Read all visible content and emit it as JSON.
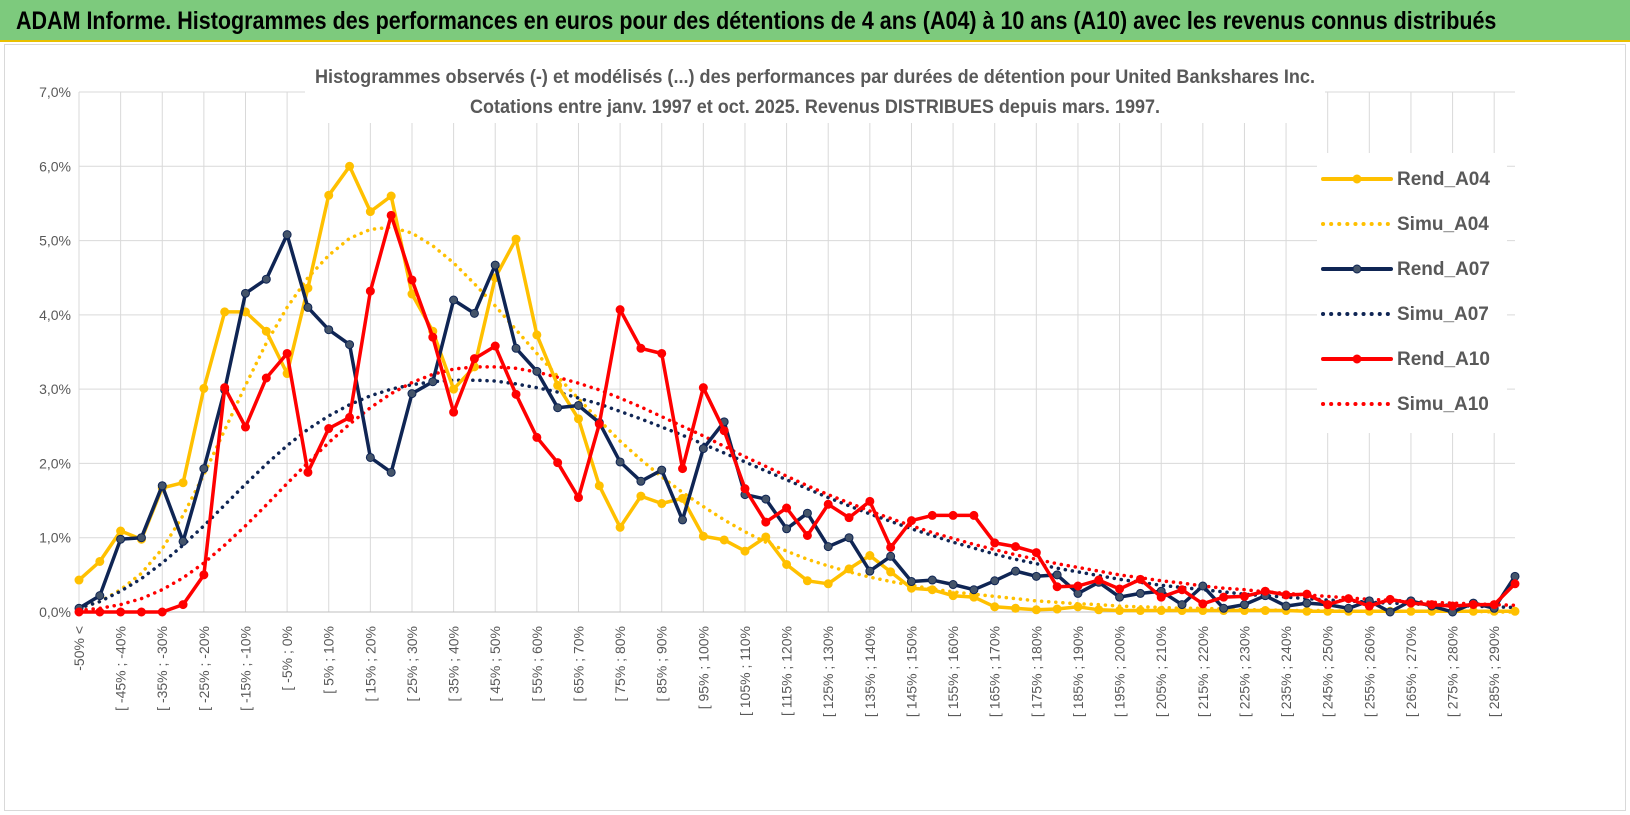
{
  "banner": {
    "title": "ADAM Informe. Histogrammes des performances en euros pour des détentions de 4 ans (A04) à 10 ans (A10) avec les revenus connus distribués"
  },
  "chart_data": {
    "type": "line",
    "title": "Histogrammes observés (-) et modélisés (...) des performances par durées de détention pour United Bankshares Inc.",
    "subtitle": "Cotations entre janv. 1997 et oct. 2025.  Revenus DISTRIBUES depuis mars. 1997.",
    "xlabel": "",
    "ylabel": "",
    "ylim": [
      0,
      7
    ],
    "yticks": [
      "0,0%",
      "1,0%",
      "2,0%",
      "3,0%",
      "4,0%",
      "5,0%",
      "6,0%",
      "7,0%"
    ],
    "grid": true,
    "legend_position": "right",
    "category_labels": [
      "-50% <",
      "[ -45% ; -40%",
      "[ -35% ; -30%",
      "[ -25% ; -20%",
      "[ -15% ; -10%",
      "[ -5% ; 0%",
      "[ 5% ; 10%",
      "[ 15% ; 20%",
      "[ 25% ; 30%",
      "[ 35% ; 40%",
      "[ 45% ; 50%",
      "[ 55% ; 60%",
      "[ 65% ; 70%",
      "[ 75% ; 80%",
      "[ 85% ; 90%",
      "[ 95% ; 100%",
      "[ 105% ; 110%",
      "[ 115% ; 120%",
      "[ 125% ; 130%",
      "[ 135% ; 140%",
      "[ 145% ; 150%",
      "[ 155% ; 160%",
      "[ 165% ; 170%",
      "[ 175% ; 180%",
      "[ 185% ; 190%",
      "[ 195% ; 200%",
      "[ 205% ; 210%",
      "[ 215% ; 220%",
      "[ 225% ; 230%",
      "[ 235% ; 240%",
      "[ 245% ; 250%",
      "[ 255% ; 260%",
      "[ 265% ; 270%",
      "[ 275% ; 280%",
      "[ 285% ; 290%"
    ],
    "series": [
      {
        "name": "Rend_A04",
        "color": "#ffc000",
        "style": "solid",
        "markers": true,
        "values": [
          0.43,
          0.68,
          1.09,
          0.98,
          1.67,
          1.74,
          3.01,
          4.04,
          4.04,
          3.78,
          3.21,
          4.36,
          5.61,
          6.0,
          5.39,
          5.6,
          4.28,
          3.78,
          3.0,
          3.3,
          4.5,
          5.02,
          3.73,
          3.05,
          2.6,
          1.7,
          1.14,
          1.56,
          1.46,
          1.53,
          1.02,
          0.97,
          0.82,
          1.01,
          0.64,
          0.42,
          0.38,
          0.58,
          0.76,
          0.54,
          0.32,
          0.3,
          0.22,
          0.2,
          0.07,
          0.05,
          0.03,
          0.04,
          0.07,
          0.03,
          0.02,
          0.02,
          0.02,
          0.02,
          0.02,
          0.02,
          0.02,
          0.02,
          0.02,
          0.01,
          0.01,
          0.01,
          0.01,
          0.01,
          0.01,
          0.01,
          0.01,
          0.01,
          0.01,
          0.01
        ]
      },
      {
        "name": "Simu_A04",
        "color": "#ffc000",
        "style": "dotted",
        "markers": false,
        "values": [
          0.05,
          0.14,
          0.3,
          0.52,
          0.85,
          1.3,
          1.85,
          2.45,
          3.05,
          3.62,
          4.1,
          4.5,
          4.8,
          5.03,
          5.15,
          5.18,
          5.1,
          4.93,
          4.7,
          4.42,
          4.12,
          3.8,
          3.48,
          3.17,
          2.87,
          2.58,
          2.3,
          2.05,
          1.82,
          1.61,
          1.42,
          1.24,
          1.08,
          0.94,
          0.82,
          0.71,
          0.62,
          0.54,
          0.47,
          0.41,
          0.36,
          0.31,
          0.27,
          0.24,
          0.21,
          0.18,
          0.15,
          0.13,
          0.11,
          0.1,
          0.08,
          0.07,
          0.06,
          0.05,
          0.05,
          0.04,
          0.03,
          0.03,
          0.02,
          0.02,
          0.02,
          0.01,
          0.01,
          0.01,
          0.01,
          0.01,
          0.01,
          0.01,
          0.0,
          0.0
        ]
      },
      {
        "name": "Rend_A07",
        "color": "#0f2554",
        "style": "solid",
        "markers": true,
        "values": [
          0.05,
          0.22,
          0.98,
          1.0,
          1.7,
          0.95,
          1.93,
          2.99,
          4.29,
          4.48,
          5.08,
          4.1,
          3.8,
          3.6,
          2.08,
          1.88,
          2.94,
          3.1,
          4.2,
          4.02,
          4.67,
          3.55,
          3.24,
          2.75,
          2.78,
          2.55,
          2.02,
          1.76,
          1.91,
          1.24,
          2.2,
          2.56,
          1.58,
          1.52,
          1.12,
          1.33,
          0.88,
          1.0,
          0.55,
          0.75,
          0.41,
          0.43,
          0.37,
          0.3,
          0.42,
          0.55,
          0.48,
          0.5,
          0.25,
          0.4,
          0.2,
          0.25,
          0.28,
          0.1,
          0.35,
          0.05,
          0.1,
          0.22,
          0.08,
          0.12,
          0.1,
          0.05,
          0.15,
          0.0,
          0.15,
          0.08,
          0.0,
          0.12,
          0.05,
          0.48
        ]
      },
      {
        "name": "Simu_A07",
        "color": "#0f2554",
        "style": "dotted",
        "markers": false,
        "values": [
          0.05,
          0.14,
          0.28,
          0.45,
          0.66,
          0.9,
          1.16,
          1.44,
          1.72,
          1.99,
          2.24,
          2.46,
          2.64,
          2.79,
          2.91,
          3.0,
          3.06,
          3.1,
          3.12,
          3.12,
          3.11,
          3.07,
          3.02,
          2.96,
          2.88,
          2.8,
          2.7,
          2.6,
          2.49,
          2.38,
          2.26,
          2.14,
          2.02,
          1.9,
          1.78,
          1.66,
          1.54,
          1.43,
          1.32,
          1.22,
          1.12,
          1.03,
          0.94,
          0.86,
          0.78,
          0.71,
          0.65,
          0.59,
          0.54,
          0.49,
          0.44,
          0.4,
          0.36,
          0.33,
          0.3,
          0.27,
          0.24,
          0.22,
          0.2,
          0.18,
          0.16,
          0.15,
          0.13,
          0.12,
          0.11,
          0.1,
          0.09,
          0.08,
          0.07,
          0.06
        ]
      },
      {
        "name": "Rend_A10",
        "color": "#ff0000",
        "style": "solid",
        "markers": true,
        "values": [
          0.0,
          0.0,
          0.0,
          0.0,
          0.0,
          0.1,
          0.5,
          3.02,
          2.49,
          3.15,
          3.48,
          1.88,
          2.47,
          2.62,
          4.32,
          5.34,
          4.47,
          3.7,
          2.69,
          3.41,
          3.58,
          2.93,
          2.35,
          2.01,
          1.54,
          2.53,
          4.07,
          3.55,
          3.48,
          1.93,
          3.02,
          2.44,
          1.66,
          1.21,
          1.4,
          1.03,
          1.45,
          1.27,
          1.49,
          0.87,
          1.23,
          1.3,
          1.3,
          1.3,
          0.93,
          0.88,
          0.8,
          0.34,
          0.35,
          0.43,
          0.31,
          0.44,
          0.2,
          0.3,
          0.11,
          0.2,
          0.21,
          0.28,
          0.23,
          0.24,
          0.1,
          0.18,
          0.08,
          0.17,
          0.12,
          0.1,
          0.08,
          0.1,
          0.1,
          0.38
        ]
      },
      {
        "name": "Simu_A10",
        "color": "#ff0000",
        "style": "dotted",
        "markers": false,
        "values": [
          0.02,
          0.05,
          0.1,
          0.18,
          0.3,
          0.46,
          0.66,
          0.9,
          1.16,
          1.44,
          1.73,
          2.01,
          2.28,
          2.53,
          2.75,
          2.94,
          3.09,
          3.2,
          3.27,
          3.3,
          3.3,
          3.28,
          3.23,
          3.16,
          3.08,
          2.99,
          2.88,
          2.76,
          2.63,
          2.5,
          2.37,
          2.23,
          2.09,
          1.96,
          1.83,
          1.7,
          1.58,
          1.47,
          1.36,
          1.26,
          1.16,
          1.07,
          0.99,
          0.91,
          0.84,
          0.77,
          0.71,
          0.65,
          0.6,
          0.55,
          0.5,
          0.46,
          0.42,
          0.39,
          0.35,
          0.32,
          0.3,
          0.27,
          0.25,
          0.23,
          0.21,
          0.19,
          0.17,
          0.16,
          0.14,
          0.13,
          0.12,
          0.11,
          0.1,
          0.09
        ]
      }
    ]
  }
}
